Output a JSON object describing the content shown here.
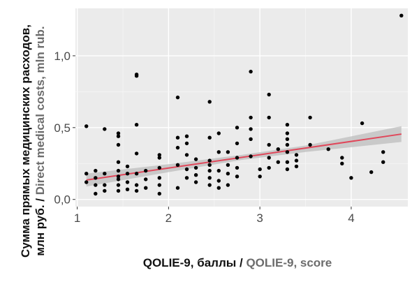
{
  "chart_data": {
    "type": "scatter",
    "ylabel_line1_ru": "Сумма прямых медицинских расходов,",
    "ylabel_line2_ru": "млн руб. / ",
    "ylabel_line2_en": "Direct medical costs, mln rub.",
    "xlabel_ru": "QOLIE-9, баллы / ",
    "xlabel_en": "QOLIE-9, score",
    "xlim": [
      0.98,
      4.62
    ],
    "ylim": [
      -0.05,
      1.33
    ],
    "x_ticks": [
      1,
      2,
      3,
      4
    ],
    "x_tick_labels": [
      "1",
      "2",
      "3",
      "4"
    ],
    "y_ticks": [
      0.0,
      0.5,
      1.0
    ],
    "y_tick_labels": [
      "0,0",
      "0,5",
      "1,0"
    ],
    "grid": true,
    "panel_color": "#ebebeb",
    "point_color": "#000000",
    "line_color": "#e0475a",
    "band_color": "#bdbdbd",
    "trend": {
      "x": [
        1.1,
        4.55
      ],
      "y": [
        0.135,
        0.455
      ]
    },
    "band": {
      "x": [
        1.1,
        2.0,
        2.8,
        3.5,
        4.55
      ],
      "lower": [
        0.09,
        0.19,
        0.275,
        0.33,
        0.4
      ],
      "upper": [
        0.18,
        0.245,
        0.31,
        0.375,
        0.51
      ]
    },
    "points": [
      [
        1.1,
        0.51
      ],
      [
        1.1,
        0.18
      ],
      [
        1.1,
        0.12
      ],
      [
        1.2,
        0.2
      ],
      [
        1.2,
        0.15
      ],
      [
        1.2,
        0.1
      ],
      [
        1.2,
        0.04
      ],
      [
        1.3,
        0.49
      ],
      [
        1.3,
        0.18
      ],
      [
        1.3,
        0.1
      ],
      [
        1.3,
        0.06
      ],
      [
        1.45,
        0.46
      ],
      [
        1.45,
        0.44
      ],
      [
        1.45,
        0.38
      ],
      [
        1.45,
        0.26
      ],
      [
        1.45,
        0.2
      ],
      [
        1.45,
        0.16
      ],
      [
        1.45,
        0.14
      ],
      [
        1.45,
        0.1
      ],
      [
        1.45,
        0.06
      ],
      [
        1.55,
        0.23
      ],
      [
        1.55,
        0.18
      ],
      [
        1.55,
        0.12
      ],
      [
        1.55,
        0.07
      ],
      [
        1.65,
        0.87
      ],
      [
        1.65,
        0.86
      ],
      [
        1.65,
        0.52
      ],
      [
        1.65,
        0.32
      ],
      [
        1.65,
        0.18
      ],
      [
        1.65,
        0.1
      ],
      [
        1.65,
        0.06
      ],
      [
        1.75,
        0.2
      ],
      [
        1.75,
        0.14
      ],
      [
        1.75,
        0.08
      ],
      [
        1.9,
        0.31
      ],
      [
        1.9,
        0.29
      ],
      [
        1.9,
        0.22
      ],
      [
        1.9,
        0.15
      ],
      [
        1.9,
        0.1
      ],
      [
        1.9,
        0.04
      ],
      [
        2.1,
        0.71
      ],
      [
        2.1,
        0.43
      ],
      [
        2.1,
        0.36
      ],
      [
        2.1,
        0.24
      ],
      [
        2.1,
        0.08
      ],
      [
        2.2,
        0.44
      ],
      [
        2.2,
        0.39
      ],
      [
        2.2,
        0.31
      ],
      [
        2.2,
        0.21
      ],
      [
        2.2,
        0.15
      ],
      [
        2.3,
        0.28
      ],
      [
        2.3,
        0.22
      ],
      [
        2.3,
        0.17
      ],
      [
        2.3,
        0.12
      ],
      [
        2.45,
        0.68
      ],
      [
        2.45,
        0.43
      ],
      [
        2.45,
        0.27
      ],
      [
        2.45,
        0.24
      ],
      [
        2.45,
        0.2
      ],
      [
        2.45,
        0.15
      ],
      [
        2.45,
        0.1
      ],
      [
        2.55,
        0.46
      ],
      [
        2.55,
        0.33
      ],
      [
        2.55,
        0.2
      ],
      [
        2.55,
        0.13
      ],
      [
        2.55,
        0.08
      ],
      [
        2.65,
        0.33
      ],
      [
        2.65,
        0.24
      ],
      [
        2.65,
        0.18
      ],
      [
        2.65,
        0.1
      ],
      [
        2.75,
        0.5
      ],
      [
        2.75,
        0.39
      ],
      [
        2.75,
        0.29
      ],
      [
        2.75,
        0.22
      ],
      [
        2.75,
        0.16
      ],
      [
        2.9,
        0.89
      ],
      [
        2.9,
        0.57
      ],
      [
        2.9,
        0.49
      ],
      [
        2.9,
        0.42
      ],
      [
        2.9,
        0.3
      ],
      [
        3.0,
        0.21
      ],
      [
        3.0,
        0.16
      ],
      [
        3.1,
        0.73
      ],
      [
        3.1,
        0.57
      ],
      [
        3.1,
        0.38
      ],
      [
        3.1,
        0.29
      ],
      [
        3.1,
        0.22
      ],
      [
        3.2,
        0.35
      ],
      [
        3.2,
        0.26
      ],
      [
        3.3,
        0.52
      ],
      [
        3.3,
        0.46
      ],
      [
        3.3,
        0.42
      ],
      [
        3.3,
        0.38
      ],
      [
        3.3,
        0.33
      ],
      [
        3.3,
        0.26
      ],
      [
        3.3,
        0.21
      ],
      [
        3.4,
        0.31
      ],
      [
        3.4,
        0.27
      ],
      [
        3.4,
        0.23
      ],
      [
        3.55,
        0.57
      ],
      [
        3.55,
        0.38
      ],
      [
        3.75,
        0.35
      ],
      [
        3.9,
        0.29
      ],
      [
        3.9,
        0.25
      ],
      [
        4.0,
        0.15
      ],
      [
        4.12,
        0.53
      ],
      [
        4.22,
        0.19
      ],
      [
        4.35,
        0.33
      ],
      [
        4.35,
        0.26
      ],
      [
        4.55,
        1.28
      ]
    ]
  }
}
